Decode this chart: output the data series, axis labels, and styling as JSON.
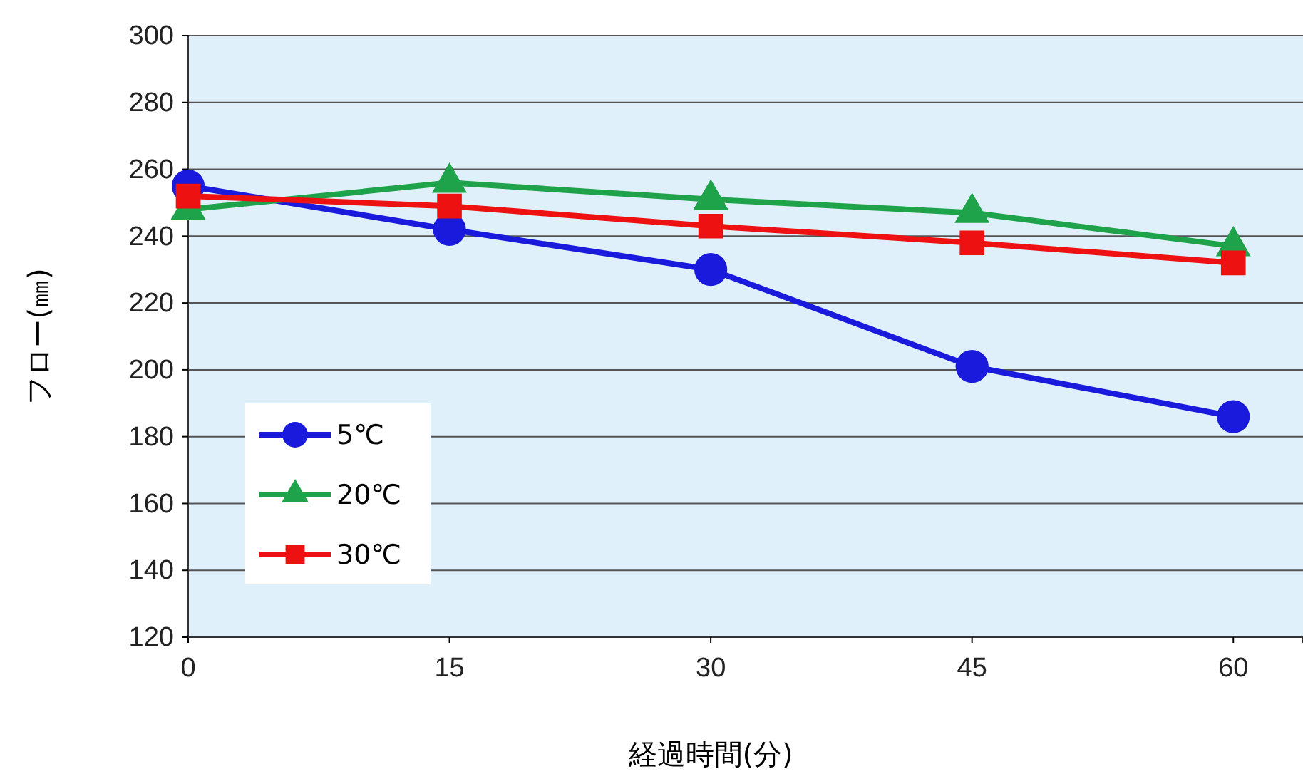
{
  "chart_data": {
    "type": "line",
    "xlabel": "経過時間(分)",
    "ylabel": "フロー(㎜)",
    "x": [
      0,
      15,
      30,
      45,
      60
    ],
    "xlim": [
      0,
      64
    ],
    "xticks": [
      0,
      15,
      30,
      45,
      60
    ],
    "ylim": [
      120,
      300
    ],
    "yticks": [
      120,
      140,
      160,
      180,
      200,
      220,
      240,
      260,
      280,
      300
    ],
    "grid": "y",
    "legend": "left",
    "line_style": "solid",
    "series": [
      {
        "name": "5℃",
        "color": "#1a1adc",
        "marker": "circle",
        "values": [
          255,
          242,
          230,
          201,
          186
        ]
      },
      {
        "name": "20℃",
        "color": "#1fa34a",
        "marker": "triangle",
        "values": [
          248,
          256,
          251,
          247,
          237
        ]
      },
      {
        "name": "30℃",
        "color": "#ee1111",
        "marker": "square",
        "values": [
          252,
          249,
          243,
          238,
          232
        ]
      }
    ]
  }
}
